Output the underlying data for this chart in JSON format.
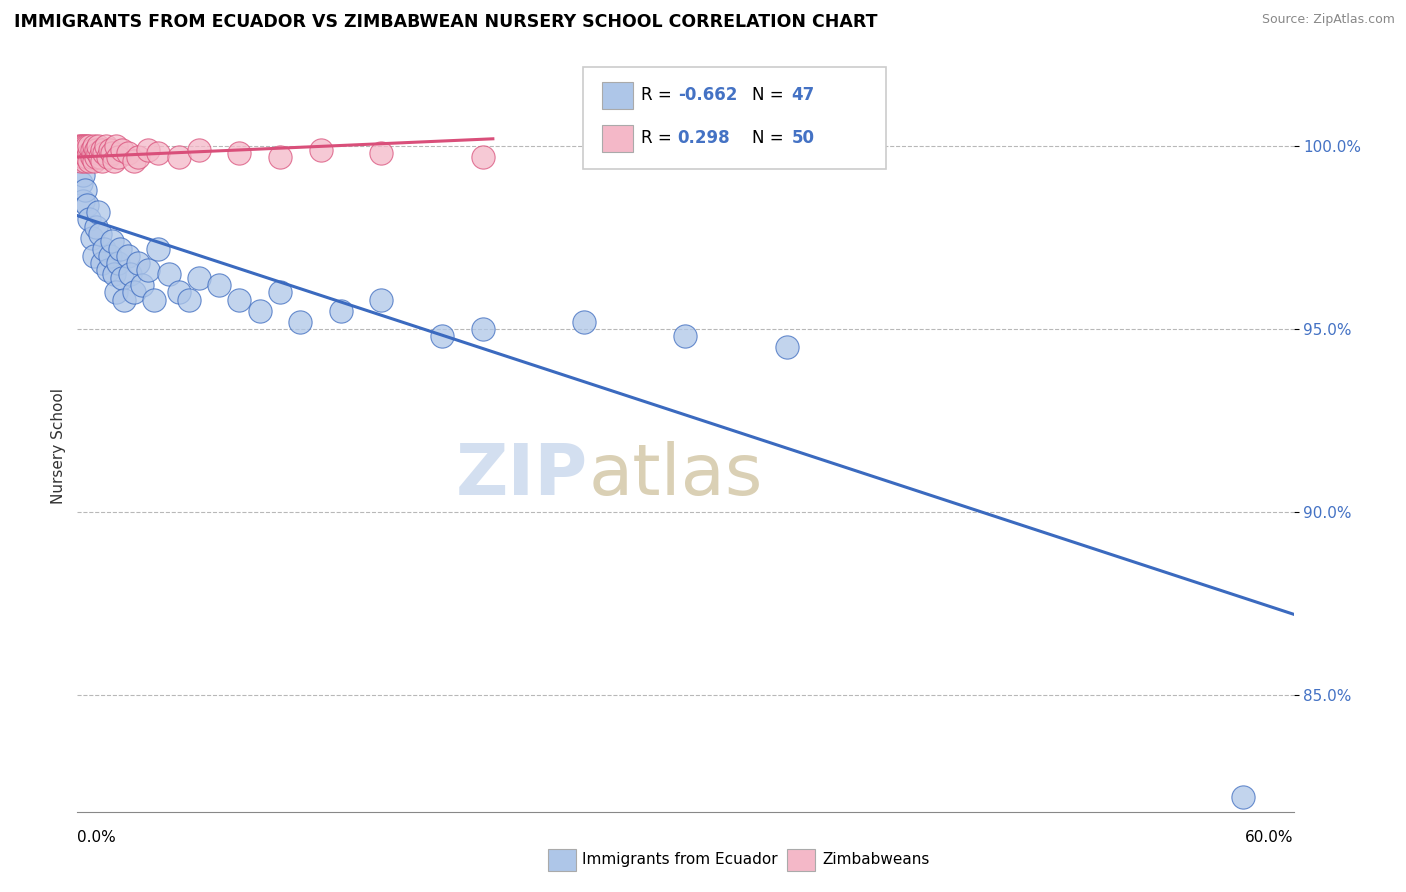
{
  "title": "IMMIGRANTS FROM ECUADOR VS ZIMBABWEAN NURSERY SCHOOL CORRELATION CHART",
  "source": "Source: ZipAtlas.com",
  "ylabel": "Nursery School",
  "x_min": 0.0,
  "x_max": 0.6,
  "y_min": 0.818,
  "y_max": 1.018,
  "legend_blue_r": "-0.662",
  "legend_blue_n": "47",
  "legend_pink_r": "0.298",
  "legend_pink_n": "50",
  "blue_color": "#aec6e8",
  "blue_line_color": "#3b6abf",
  "pink_color": "#f4b8c8",
  "pink_line_color": "#d94f7a",
  "y_ticks": [
    0.85,
    0.9,
    0.95,
    1.0
  ],
  "y_tick_labels": [
    "85.0%",
    "90.0%",
    "95.0%",
    "100.0%"
  ],
  "blue_scatter_x": [
    0.002,
    0.003,
    0.003,
    0.004,
    0.005,
    0.006,
    0.007,
    0.008,
    0.009,
    0.01,
    0.011,
    0.012,
    0.013,
    0.015,
    0.016,
    0.017,
    0.018,
    0.019,
    0.02,
    0.021,
    0.022,
    0.023,
    0.025,
    0.026,
    0.028,
    0.03,
    0.032,
    0.035,
    0.038,
    0.04,
    0.045,
    0.05,
    0.055,
    0.06,
    0.07,
    0.08,
    0.09,
    0.1,
    0.11,
    0.13,
    0.15,
    0.18,
    0.2,
    0.25,
    0.3,
    0.35,
    0.575
  ],
  "blue_scatter_y": [
    0.99,
    0.985,
    0.992,
    0.988,
    0.984,
    0.98,
    0.975,
    0.97,
    0.978,
    0.982,
    0.976,
    0.968,
    0.972,
    0.966,
    0.97,
    0.974,
    0.965,
    0.96,
    0.968,
    0.972,
    0.964,
    0.958,
    0.97,
    0.965,
    0.96,
    0.968,
    0.962,
    0.966,
    0.958,
    0.972,
    0.965,
    0.96,
    0.958,
    0.964,
    0.962,
    0.958,
    0.955,
    0.96,
    0.952,
    0.955,
    0.958,
    0.948,
    0.95,
    0.952,
    0.948,
    0.945,
    0.822
  ],
  "pink_scatter_x": [
    0.001,
    0.001,
    0.002,
    0.002,
    0.002,
    0.003,
    0.003,
    0.003,
    0.004,
    0.004,
    0.004,
    0.005,
    0.005,
    0.005,
    0.006,
    0.006,
    0.006,
    0.007,
    0.007,
    0.008,
    0.008,
    0.008,
    0.009,
    0.009,
    0.01,
    0.01,
    0.011,
    0.012,
    0.012,
    0.013,
    0.014,
    0.015,
    0.016,
    0.017,
    0.018,
    0.019,
    0.02,
    0.022,
    0.025,
    0.028,
    0.03,
    0.035,
    0.04,
    0.05,
    0.06,
    0.08,
    0.1,
    0.12,
    0.15,
    0.2
  ],
  "pink_scatter_y": [
    0.998,
    1.0,
    0.996,
    0.999,
    1.0,
    0.997,
    0.999,
    1.0,
    0.998,
    0.996,
    1.0,
    0.997,
    0.999,
    1.0,
    0.998,
    0.996,
    1.0,
    0.997,
    0.999,
    0.998,
    0.996,
    1.0,
    0.997,
    0.999,
    0.998,
    1.0,
    0.997,
    0.999,
    0.996,
    0.998,
    1.0,
    0.997,
    0.999,
    0.998,
    0.996,
    1.0,
    0.997,
    0.999,
    0.998,
    0.996,
    0.997,
    0.999,
    0.998,
    0.997,
    0.999,
    0.998,
    0.997,
    0.999,
    0.998,
    0.997
  ],
  "blue_trend_x": [
    0.0,
    0.6
  ],
  "blue_trend_y": [
    0.981,
    0.872
  ],
  "pink_trend_x": [
    0.0,
    0.205
  ],
  "pink_trend_y": [
    0.997,
    1.002
  ]
}
